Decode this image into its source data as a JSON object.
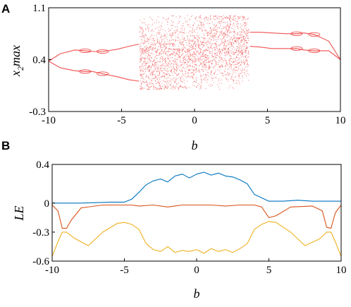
{
  "chart_data": [
    {
      "panel": "A",
      "type": "scatter",
      "title": "",
      "xlabel": "b",
      "ylabel": {
        "main": "x",
        "sub": "2",
        "rest": "max"
      },
      "xlim": [
        -10,
        10
      ],
      "ylim": [
        -0.3,
        1.1
      ],
      "xticks": [
        "-10",
        "-5",
        "0",
        "5",
        "10"
      ],
      "yticks": [
        "-0.3",
        "0.4",
        "1.1"
      ],
      "grid": false,
      "color": "#ee3333",
      "description_of_data": "bifurcation diagram of local maxima of x2 versus b",
      "periodic_branches": [
        {
          "x": [
            -10,
            -9.2,
            -8.2,
            -7.5,
            -7.0,
            -6.3,
            -5.3,
            -4.5,
            -3.8
          ],
          "y": [
            0.38,
            0.48,
            0.53,
            0.52,
            0.51,
            0.51,
            0.54,
            0.58,
            0.61
          ]
        },
        {
          "x": [
            -10,
            -9.2,
            -8.2,
            -7.5,
            -7.0,
            -6.3,
            -5.3,
            -4.5,
            -3.8
          ],
          "y": [
            0.38,
            0.29,
            0.25,
            0.24,
            0.24,
            0.21,
            0.17,
            0.13,
            0.11
          ]
        },
        {
          "x": [
            3.8,
            4.5,
            5.3,
            6.3,
            7.0,
            7.5,
            8.2,
            9.2,
            10
          ],
          "y": [
            0.77,
            0.77,
            0.76,
            0.75,
            0.75,
            0.76,
            0.74,
            0.65,
            0.4
          ]
        },
        {
          "x": [
            3.8,
            4.5,
            5.3,
            6.3,
            7.0,
            7.5,
            8.2,
            9.2,
            10
          ],
          "y": [
            0.58,
            0.57,
            0.55,
            0.55,
            0.55,
            0.53,
            0.52,
            0.52,
            0.4
          ]
        }
      ],
      "chaotic_region": {
        "x_range": [
          -3.8,
          3.7
        ],
        "y_range": [
          0.0,
          1.0
        ]
      }
    },
    {
      "panel": "B",
      "type": "line",
      "title": "",
      "xlabel": "b",
      "ylabel": "LE",
      "xlim": [
        -10,
        10
      ],
      "ylim": [
        -0.6,
        0.4
      ],
      "xticks": [
        "-10",
        "-5",
        "0",
        "5",
        "10"
      ],
      "yticks": [
        "-0.6",
        "-0.3",
        "0",
        "0.4"
      ],
      "grid": false,
      "series": [
        {
          "color": "#0072bd",
          "x": [
            -10,
            -8,
            -6,
            -5,
            -4.5,
            -4,
            -3.5,
            -3,
            -2.5,
            -2,
            -1.5,
            -1,
            -0.5,
            0,
            0.5,
            1,
            1.5,
            2,
            2.5,
            3,
            3.5,
            4,
            5,
            6,
            7,
            8,
            9,
            10
          ],
          "y": [
            0.0,
            0.0,
            0.01,
            0.01,
            0.04,
            0.11,
            0.19,
            0.23,
            0.25,
            0.22,
            0.28,
            0.3,
            0.26,
            0.3,
            0.32,
            0.29,
            0.31,
            0.28,
            0.27,
            0.24,
            0.2,
            0.09,
            0.02,
            0.02,
            0.03,
            0.02,
            0.02,
            0.02
          ]
        },
        {
          "color": "#d95319",
          "x": [
            -10,
            -9.6,
            -9.3,
            -9.0,
            -8.7,
            -8.0,
            -6.5,
            -5.5,
            -5,
            -4.5,
            -4,
            -3,
            -2,
            -1,
            0,
            1,
            2,
            3,
            4,
            4.5,
            5,
            5.5,
            6.5,
            8,
            8.7,
            9.0,
            9.3,
            9.6,
            10
          ],
          "y": [
            -0.02,
            -0.08,
            -0.26,
            -0.26,
            -0.18,
            -0.05,
            -0.02,
            -0.02,
            -0.02,
            -0.02,
            -0.03,
            -0.02,
            -0.04,
            -0.02,
            -0.02,
            -0.02,
            -0.03,
            -0.02,
            -0.02,
            -0.04,
            -0.15,
            -0.13,
            -0.04,
            -0.03,
            -0.08,
            -0.25,
            -0.26,
            -0.1,
            -0.02
          ]
        },
        {
          "color": "#edb120",
          "x": [
            -10,
            -9.6,
            -9.3,
            -9.0,
            -8.5,
            -7.5,
            -6.5,
            -5.5,
            -5,
            -4.5,
            -4,
            -3.5,
            -3,
            -2.5,
            -2,
            -1.5,
            -1,
            -0.5,
            0,
            0.5,
            1,
            1.5,
            2,
            2.5,
            3,
            3.5,
            4,
            4.5,
            5,
            5.5,
            6.5,
            7.5,
            8.5,
            9.0,
            9.3,
            9.6,
            10
          ],
          "y": [
            -0.55,
            -0.4,
            -0.3,
            -0.3,
            -0.36,
            -0.44,
            -0.3,
            -0.21,
            -0.2,
            -0.22,
            -0.27,
            -0.42,
            -0.48,
            -0.5,
            -0.45,
            -0.51,
            -0.49,
            -0.5,
            -0.48,
            -0.52,
            -0.47,
            -0.5,
            -0.48,
            -0.51,
            -0.47,
            -0.42,
            -0.27,
            -0.22,
            -0.19,
            -0.2,
            -0.3,
            -0.44,
            -0.37,
            -0.3,
            -0.3,
            -0.4,
            -0.55
          ]
        }
      ]
    }
  ]
}
